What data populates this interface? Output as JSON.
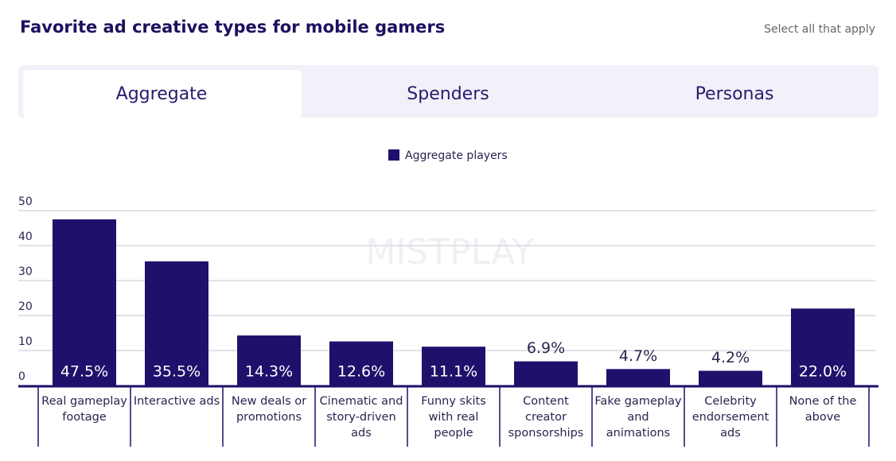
{
  "tabs": [
    "Aggregate",
    "Spenders",
    "Personas"
  ],
  "chart_data": {
    "type": "bar",
    "title": "Favorite ad creative types for mobile gamers",
    "subtitle": "Select all that apply",
    "watermark": "MISTPLAY",
    "categories": [
      "Real gameplay footage",
      "Interactive ads",
      "New deals or promotions",
      "Cinematic and story-driven ads",
      "Funny skits with real people",
      "Content creator sponsorships",
      "Fake gameplay and animations",
      "Celebrity endorsement ads",
      "None of the above"
    ],
    "series": [
      {
        "name": "Aggregate players",
        "color": "#21106b",
        "values": [
          47.5,
          35.5,
          14.3,
          12.6,
          11.1,
          6.9,
          4.7,
          4.2,
          22.0
        ],
        "value_labels": [
          "47.5%",
          "35.5%",
          "14.3%",
          "12.6%",
          "11.1%",
          "6.9%",
          "4.7%",
          "4.2%",
          "22.0%"
        ]
      }
    ],
    "ylim": [
      0,
      50
    ],
    "yticks": [
      0,
      10,
      20,
      30,
      40,
      50
    ],
    "grid": true,
    "legend": "top"
  }
}
